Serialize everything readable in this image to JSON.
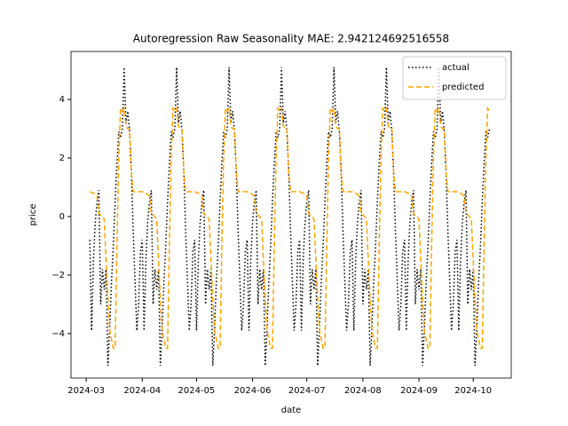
{
  "chart_data": {
    "type": "line",
    "title": "Autoregression Raw Seasonality MAE: 2.942124692516558",
    "xlabel": "date",
    "ylabel": "price",
    "xlim": [
      -10.4,
      233
    ],
    "ylim": [
      -5.52,
      5.64
    ],
    "xticks": [
      {
        "value": -2,
        "label": "2024-03"
      },
      {
        "value": 29,
        "label": "2024-04"
      },
      {
        "value": 59,
        "label": "2024-05"
      },
      {
        "value": 90,
        "label": "2024-06"
      },
      {
        "value": 120,
        "label": "2024-07"
      },
      {
        "value": 151,
        "label": "2024-08"
      },
      {
        "value": 182,
        "label": "2024-09"
      },
      {
        "value": 212,
        "label": "2024-10"
      }
    ],
    "yticks": [
      {
        "value": -4,
        "label": "−4"
      },
      {
        "value": -2,
        "label": "−2"
      },
      0,
      2,
      4
    ],
    "legend": "upper right",
    "series": [
      {
        "name": "actual",
        "color": "#000000",
        "style": "dotted",
        "values": [
          -0.8,
          -3.9,
          -1.5,
          -0.2,
          0.5,
          0.9,
          -3.0,
          -1.8,
          -2.5,
          -1.8,
          -5.1,
          -3.8,
          -2.2,
          -1.0,
          0.5,
          1.8,
          2.9,
          2.7,
          3.0,
          5.1,
          3.2,
          3.6,
          2.9,
          1.5,
          -0.5,
          -2.2,
          -3.9,
          -3.0,
          -1.2,
          -0.8,
          -3.9,
          -1.5,
          -0.2,
          0.5,
          0.9,
          -3.0,
          -1.8,
          -2.5,
          -1.8,
          -5.1,
          -3.8,
          -2.2,
          -1.0,
          0.5,
          1.8,
          2.9,
          2.7,
          3.0,
          5.1,
          3.2,
          3.6,
          2.9,
          1.5,
          -0.5,
          -2.2,
          -3.9,
          -3.0,
          -1.2,
          -0.8,
          -3.9,
          -1.5,
          -0.2,
          0.5,
          0.9,
          -3.0,
          -1.8,
          -2.5,
          -1.8,
          -5.1,
          -3.8,
          -2.2,
          -1.0,
          0.5,
          1.8,
          2.9,
          2.7,
          3.0,
          5.1,
          3.2,
          3.6,
          2.9,
          1.5,
          -0.5,
          -2.2,
          -3.9,
          -3.0,
          -1.2,
          -0.8,
          -3.9,
          -1.5,
          -0.2,
          0.5,
          0.9,
          -3.0,
          -1.8,
          -2.5,
          -1.8,
          -5.1,
          -3.8,
          -2.2,
          -1.0,
          0.5,
          1.8,
          2.9,
          2.7,
          3.0,
          5.1,
          3.2,
          3.6,
          2.9,
          1.5,
          -0.5,
          -2.2,
          -3.9,
          -3.0,
          -1.2,
          -0.8,
          -3.9,
          -1.5,
          -0.2,
          0.5,
          0.9,
          -3.0,
          -1.8,
          -2.5,
          -1.8,
          -5.1,
          -3.8,
          -2.2,
          -1.0,
          0.5,
          1.8,
          2.9,
          2.7,
          3.0,
          5.1,
          3.2,
          3.6,
          2.9,
          1.5,
          -0.5,
          -2.2,
          -3.9,
          -3.0,
          -1.2,
          -0.8,
          -3.9,
          -1.5,
          -0.2,
          0.5,
          0.9,
          -3.0,
          -1.8,
          -2.5,
          -1.8,
          -5.1,
          -3.8,
          -2.2,
          -1.0,
          0.5,
          1.8,
          2.9,
          2.7,
          3.0,
          5.1,
          3.2,
          3.6,
          2.9,
          1.5,
          -0.5,
          -2.2,
          -3.9,
          -3.0,
          -1.2,
          -0.8,
          -3.9,
          -1.5,
          -0.2,
          0.5,
          0.9,
          -3.0,
          -1.8,
          -2.5,
          -1.8,
          -5.1,
          -3.8,
          -2.2,
          -1.0,
          0.5,
          1.8,
          2.9,
          2.7,
          3.0,
          5.1,
          3.2,
          3.6,
          2.9,
          1.5,
          -0.5,
          -2.2,
          -3.9,
          -3.0,
          -1.2,
          -0.8,
          -3.9,
          -1.5,
          -0.2,
          0.5,
          0.9,
          -3.0,
          -1.8,
          -2.5,
          -1.8,
          -5.1,
          -3.8,
          -2.2,
          -1.0,
          0.5,
          1.8,
          2.9,
          2.7,
          3.0
        ]
      },
      {
        "name": "predicted",
        "color": "#ffa500",
        "style": "dashed",
        "values": [
          0.85,
          0.82,
          0.8,
          0.75,
          0.7,
          0.1,
          0.05,
          0,
          -0.1,
          -1.5,
          -2.8,
          -3.9,
          -4.2,
          -4.5,
          -4.5,
          -1.0,
          2.0,
          3.7,
          3.6,
          3.7,
          3.1,
          3.0,
          3.0,
          1.5,
          0.85,
          0.85,
          0.85,
          0.85,
          0.85,
          0.85,
          0.82,
          0.8,
          0.75,
          0.7,
          0.1,
          0.05,
          0,
          -0.1,
          -1.5,
          -2.8,
          -3.9,
          -4.2,
          -4.5,
          -4.5,
          -1.0,
          2.0,
          3.7,
          3.6,
          3.7,
          3.1,
          3.0,
          3.0,
          1.5,
          0.85,
          0.85,
          0.85,
          0.85,
          0.85,
          0.85,
          0.82,
          0.8,
          0.75,
          0.7,
          0.1,
          0.05,
          0,
          -0.1,
          -1.5,
          -2.8,
          -3.9,
          -4.2,
          -4.5,
          -4.5,
          -1.0,
          2.0,
          3.7,
          3.6,
          3.7,
          3.1,
          3.0,
          3.0,
          1.5,
          0.85,
          0.85,
          0.85,
          0.85,
          0.85,
          0.85,
          0.82,
          0.8,
          0.75,
          0.7,
          0.1,
          0.05,
          0,
          -0.1,
          -1.5,
          -2.8,
          -3.9,
          -4.2,
          -4.5,
          -4.5,
          -1.0,
          2.0,
          3.7,
          3.6,
          3.7,
          3.1,
          3.0,
          3.0,
          1.5,
          0.85,
          0.85,
          0.85,
          0.85,
          0.85,
          0.85,
          0.82,
          0.8,
          0.75,
          0.7,
          0.1,
          0.05,
          0,
          -0.1,
          -1.5,
          -2.8,
          -3.9,
          -4.2,
          -4.5,
          -4.5,
          -1.0,
          2.0,
          3.7,
          3.6,
          3.7,
          3.1,
          3.0,
          3.0,
          1.5,
          0.85,
          0.85,
          0.85,
          0.85,
          0.85,
          0.85,
          0.82,
          0.8,
          0.75,
          0.7,
          0.1,
          0.05,
          0,
          -0.1,
          -1.5,
          -2.8,
          -3.9,
          -4.2,
          -4.5,
          -4.5,
          -1.0,
          2.0,
          3.7,
          3.6,
          3.7,
          3.1,
          3.0,
          3.0,
          1.5,
          0.85,
          0.85,
          0.85,
          0.85,
          0.85,
          0.85,
          0.82,
          0.8,
          0.75,
          0.7,
          0.1,
          0.05,
          0,
          -0.1,
          -1.5,
          -2.8,
          -3.9,
          -4.2,
          -4.5,
          -4.5,
          -1.0,
          2.0,
          3.7,
          3.6,
          3.7,
          3.1,
          3.0,
          3.0,
          1.5,
          0.85,
          0.85,
          0.85,
          0.85,
          0.85,
          0.85,
          0.82,
          0.8,
          0.75,
          0.7,
          0.1,
          0.05,
          0,
          -0.1,
          -1.5,
          -2.8,
          -3.9,
          -4.2,
          -4.5,
          -4.5,
          -1.0,
          2.0,
          3.7,
          3.6
        ]
      }
    ]
  }
}
